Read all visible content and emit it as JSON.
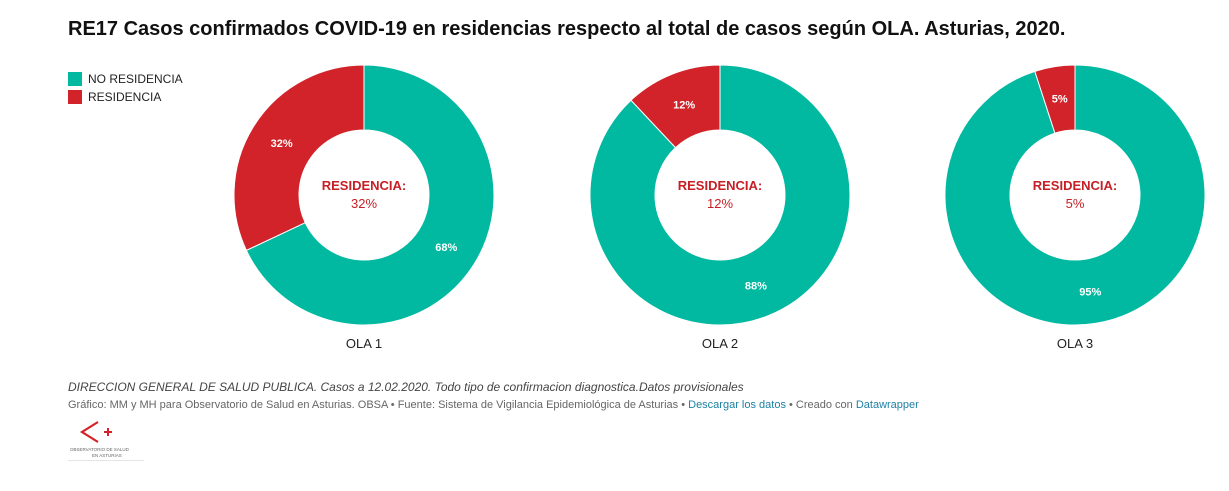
{
  "title": "RE17 Casos confirmados COVID-19 en residencias respecto al total de casos según OLA. Asturias, 2020.",
  "colors": {
    "no_residencia": "#00b9a0",
    "residencia": "#d12329",
    "center_label": "#c62026"
  },
  "legend": [
    {
      "label": "NO RESIDENCIA",
      "color": "#00b9a0"
    },
    {
      "label": "RESIDENCIA",
      "color": "#d12329"
    }
  ],
  "chart_data": [
    {
      "type": "pie",
      "title": "OLA 1",
      "center_label": "RESIDENCIA:",
      "center_value": "32%",
      "slices": [
        {
          "name": "NO RESIDENCIA",
          "value": 68,
          "label": "68%"
        },
        {
          "name": "RESIDENCIA",
          "value": 32,
          "label": "32%"
        }
      ]
    },
    {
      "type": "pie",
      "title": "OLA 2",
      "center_label": "RESIDENCIA:",
      "center_value": "12%",
      "slices": [
        {
          "name": "NO RESIDENCIA",
          "value": 88,
          "label": "88%"
        },
        {
          "name": "RESIDENCIA",
          "value": 12,
          "label": "12%"
        }
      ]
    },
    {
      "type": "pie",
      "title": "OLA 3",
      "center_label": "RESIDENCIA:",
      "center_value": "5%",
      "slices": [
        {
          "name": "NO RESIDENCIA",
          "value": 95,
          "label": "95%"
        },
        {
          "name": "RESIDENCIA",
          "value": 5,
          "label": "5%"
        }
      ]
    }
  ],
  "footer": {
    "note": "DIRECCION GENERAL DE SALUD PUBLICA. Casos a 12.02.2020. Todo tipo de confirmacion diagnostica.Datos provisionales",
    "credits_prefix": "Gráfico: MM y MH para Observatorio de Salud en Asturias. OBSA • Fuente: Sistema de Vigilancia Epidemiológica de Asturias • ",
    "download_link": "Descargar los datos",
    "created_with": " • Creado con ",
    "datawrapper_link": "Datawrapper"
  },
  "logo": {
    "line1": "OBSERVATORIO DE SALUD",
    "line2": "EN ASTURIAS"
  }
}
